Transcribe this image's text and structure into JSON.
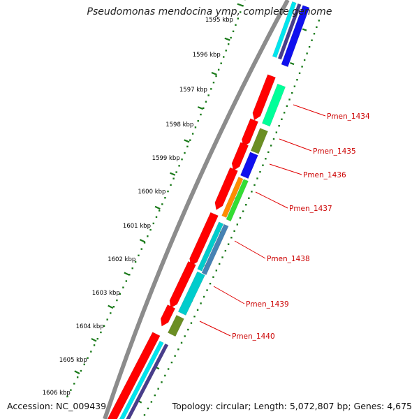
{
  "title": "Pseudomonas mendocina ymp, complete genome",
  "footer": {
    "accession_label": "Accession: ",
    "accession": "NC_009439",
    "topology_label": "Topology: ",
    "topology": "circular",
    "length_label": "; Length: ",
    "length": "5,072,807 bp",
    "genes_label": "; Genes: ",
    "genes": "4,675"
  },
  "colors": {
    "backbone": "#8c8c8c",
    "tick_outer": "#1a7a1a",
    "tick_inner": "#1a7a1a",
    "label_line": "#e00000",
    "label_text": "#cc0000",
    "kbp_text": "#000000",
    "red": "#ff0000",
    "cyan": "#00e5ee",
    "blue": "#1010ee",
    "spring": "#00ff99",
    "olive": "#6b8e23",
    "orange": "#ff8c00",
    "green": "#33dd33",
    "steel": "#4682b4",
    "turquoise": "#00cccc",
    "slate": "#483d8b"
  },
  "kbp_labels": [
    "1595 kbp",
    "1596 kbp",
    "1597 kbp",
    "1598 kbp",
    "1599 kbp",
    "1600 kbp",
    "1601 kbp",
    "1602 kbp",
    "1603 kbp",
    "1604 kbp",
    "1605 kbp",
    "1606 kbp"
  ],
  "gene_labels": [
    "Pmen_1434",
    "Pmen_1435",
    "Pmen_1436",
    "Pmen_1437",
    "Pmen_1438",
    "Pmen_1439",
    "Pmen_1440"
  ]
}
